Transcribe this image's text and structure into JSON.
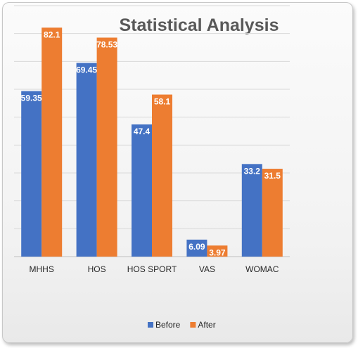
{
  "chart_data": {
    "type": "bar",
    "title": "Statistical Analysis",
    "categories": [
      "MHHS",
      "HOS",
      "HOS SPORT",
      "VAS",
      "WOMAC"
    ],
    "series": [
      {
        "name": "Before",
        "color": "#4472C4",
        "values": [
          59.35,
          69.45,
          47.4,
          6.09,
          33.2
        ],
        "labels": [
          "59.35",
          "69.45",
          "47.4",
          "6.09",
          "33.2"
        ]
      },
      {
        "name": "After",
        "color": "#ED7D31",
        "values": [
          82.1,
          78.53,
          58.1,
          3.97,
          31.5
        ],
        "labels": [
          "82.1",
          "78.53",
          "58.1",
          "3.97",
          "31.5"
        ]
      }
    ],
    "ylim": [
      0,
      90
    ],
    "grid": true,
    "legend": "bottom",
    "xlabel": "",
    "ylabel": ""
  }
}
